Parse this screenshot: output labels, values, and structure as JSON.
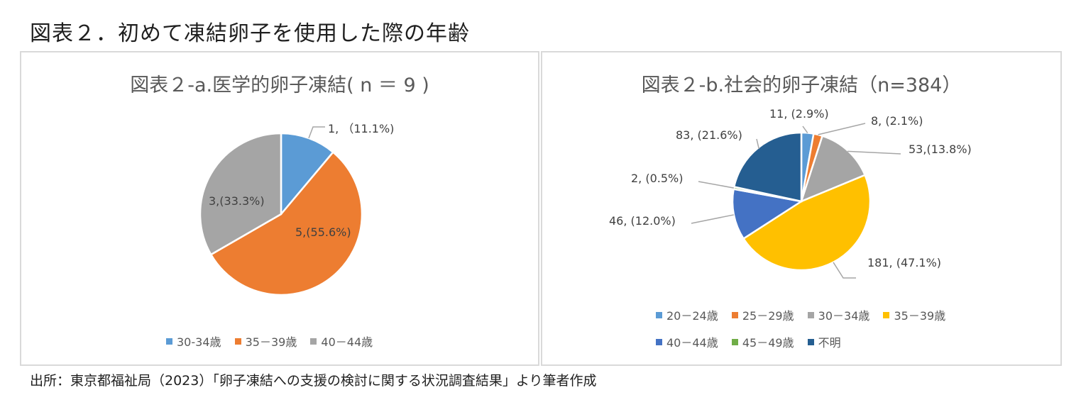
{
  "figure_title": "図表２．初めて凍結卵子を使用した際の年齢",
  "source": "出所：東京都福祉局（2023）「卵子凍結への支援の検討に関する状況調査結果」より筆者作成",
  "chart_data": [
    {
      "type": "pie",
      "title": "図表２-a.医学的卵子凍結( n ＝ 9 )",
      "start_angle_deg": 0,
      "slices": [
        {
          "name": "30-34歳",
          "value": 1,
          "label": "1, （11.1%)",
          "color": "#5b9bd5"
        },
        {
          "name": "35－39歳",
          "value": 5,
          "label": "5,(55.6%)",
          "color": "#ed7d31"
        },
        {
          "name": "40－44歳",
          "value": 3,
          "label": "3,(33.3%)",
          "color": "#a5a5a5"
        }
      ],
      "legend": [
        "30-34歳",
        "35－39歳",
        "40－44歳"
      ],
      "legend_position": "bottom"
    },
    {
      "type": "pie",
      "title": "図表２-b.社会的卵子凍結（n=384）",
      "start_angle_deg": 0,
      "slices": [
        {
          "name": "20－24歳",
          "value": 11,
          "label": "11, (2.9%)",
          "color": "#5b9bd5"
        },
        {
          "name": "25－29歳",
          "value": 8,
          "label": "8, (2.1%)",
          "color": "#ed7d31"
        },
        {
          "name": "30－34歳",
          "value": 53,
          "label": "53,(13.8%)",
          "color": "#a5a5a5"
        },
        {
          "name": "35－39歳",
          "value": 181,
          "label": "181, (47.1%)",
          "color": "#ffc000"
        },
        {
          "name": "40－44歳",
          "value": 46,
          "label": "46, (12.0%)",
          "color": "#4472c4"
        },
        {
          "name": "45－49歳",
          "value": 2,
          "label": "2, (0.5%)",
          "color": "#70ad47"
        },
        {
          "name": "不明",
          "value": 83,
          "label": "83, (21.6%)",
          "color": "#255e91"
        }
      ],
      "legend": [
        "20－24歳",
        "25－29歳",
        "30－34歳",
        "35－39歳",
        "40－44歳",
        "45－49歳",
        "不明"
      ],
      "legend_position": "bottom"
    }
  ]
}
